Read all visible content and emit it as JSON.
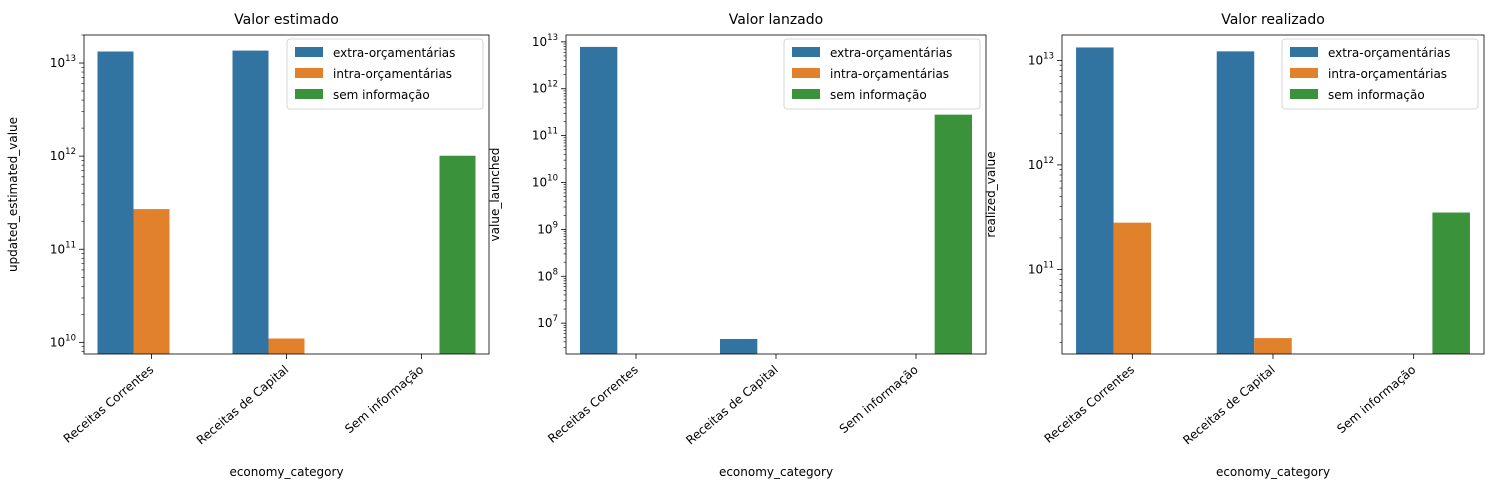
{
  "chart_data": [
    {
      "type": "bar",
      "title": "Valor estimado",
      "xlabel": "economy_category",
      "ylabel": "updated_estimated_value",
      "yscale": "log",
      "ylim": [
        7500000000.0,
        20000000000000.0
      ],
      "y_ticks": [
        10000000000.0,
        100000000000.0,
        1000000000000.0,
        10000000000000.0
      ],
      "categories": [
        "Receitas Correntes",
        "Receitas de Capital",
        "Sem informação"
      ],
      "series": [
        {
          "name": "extra-orçamentárias",
          "values": [
            13300000000000.0,
            13600000000000.0,
            null
          ]
        },
        {
          "name": "intra-orçamentárias",
          "values": [
            270000000000.0,
            11000000000.0,
            null
          ]
        },
        {
          "name": "sem informação",
          "values": [
            null,
            null,
            1010000000000.0
          ]
        }
      ],
      "legend": "top-right",
      "grid": false
    },
    {
      "type": "bar",
      "title": "Valor lanzado",
      "xlabel": "economy_category",
      "ylabel": "value_launched",
      "yscale": "log",
      "ylim": [
        2200000.0,
        14000000000000.0
      ],
      "y_ticks": [
        10000000.0,
        100000000.0,
        1000000000.0,
        10000000000.0,
        100000000000.0,
        1000000000000.0,
        10000000000000.0
      ],
      "categories": [
        "Receitas Correntes",
        "Receitas de Capital",
        "Sem informação"
      ],
      "series": [
        {
          "name": "extra-orçamentárias",
          "values": [
            7800000000000.0,
            4600000.0,
            null
          ]
        },
        {
          "name": "intra-orçamentárias",
          "values": [
            null,
            null,
            null
          ]
        },
        {
          "name": "sem informação",
          "values": [
            null,
            null,
            280000000000.0
          ]
        }
      ],
      "legend": "top-right",
      "grid": false
    },
    {
      "type": "bar",
      "title": "Valor realizado",
      "xlabel": "economy_category",
      "ylabel": "realized_value",
      "yscale": "log",
      "ylim": [
        15500000000.0,
        17500000000000.0
      ],
      "y_ticks": [
        100000000000.0,
        1000000000000.0,
        10000000000000.0
      ],
      "categories": [
        "Receitas Correntes",
        "Receitas de Capital",
        "Sem informação"
      ],
      "series": [
        {
          "name": "extra-orçamentárias",
          "values": [
            13300000000000.0,
            12200000000000.0,
            null
          ]
        },
        {
          "name": "intra-orçamentárias",
          "values": [
            280000000000.0,
            22000000000.0,
            null
          ]
        },
        {
          "name": "sem informação",
          "values": [
            null,
            null,
            350000000000.0
          ]
        }
      ],
      "legend": "top-right",
      "grid": false
    }
  ],
  "colors": {
    "extra-orçamentárias": "#3274a1",
    "intra-orçamentárias": "#e1812c",
    "sem informação": "#3a923a"
  }
}
